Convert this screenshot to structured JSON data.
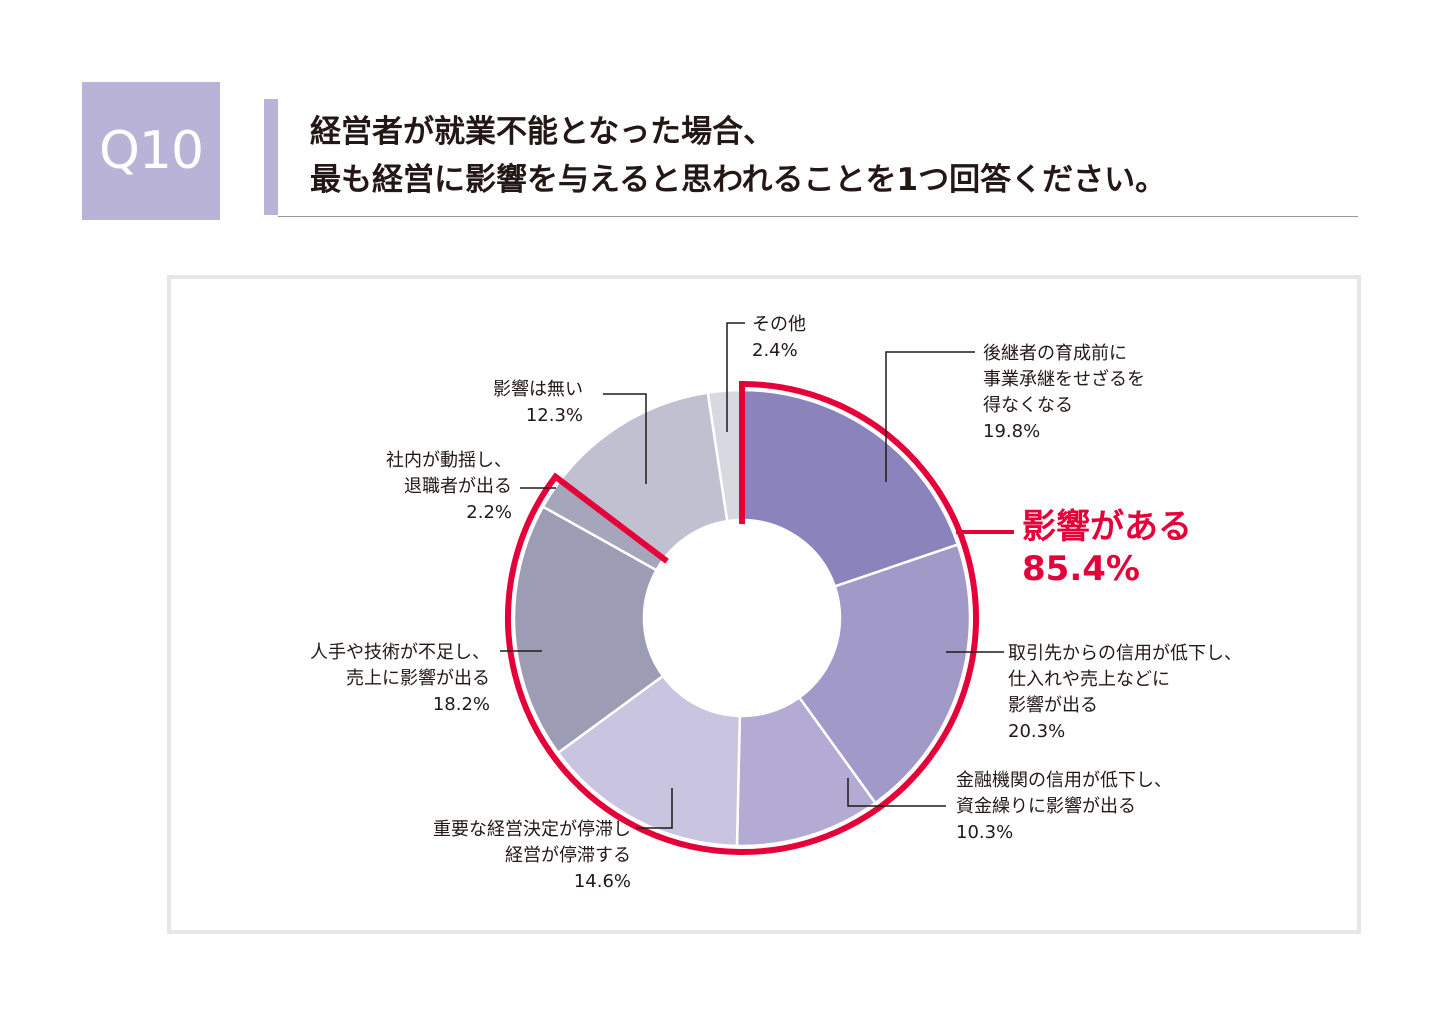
{
  "header": {
    "badge": "Q10",
    "title_line1": "経営者が就業不能となった場合、",
    "title_line2": "最も経営に影響を与えると思われることを1つ回答ください。"
  },
  "chart_data": {
    "type": "pie",
    "title": "",
    "categories": [
      "後継者の育成前に事業承継をせざるを得なくなる",
      "取引先からの信用が低下し、仕入れや売上などに影響が出る",
      "金融機関の信用が低下し、資金繰りに影響が出る",
      "重要な経営決定が停滞し経営が停滞する",
      "人手や技術が不足し、売上に影響が出る",
      "社内が動揺し、退職者が出る",
      "影響は無い",
      "その他"
    ],
    "values": [
      19.8,
      20.3,
      10.3,
      14.6,
      18.2,
      2.2,
      12.3,
      2.4
    ],
    "unit": "%",
    "colors": [
      "#8b84bc",
      "#a199c8",
      "#b3abd4",
      "#c9c4e0",
      "#9c9db4",
      "#a5a6bb",
      "#c0c0d1",
      "#d8d8e0"
    ],
    "slice_labels": [
      {
        "lines": [
          "後継者の育成前に",
          "事業承継をせざるを",
          "得なくなる"
        ],
        "value": "19.8%"
      },
      {
        "lines": [
          "取引先からの信用が低下し、",
          "仕入れや売上などに",
          "影響が出る"
        ],
        "value": "20.3%"
      },
      {
        "lines": [
          "金融機関の信用が低下し、",
          "資金繰りに影響が出る"
        ],
        "value": "10.3%"
      },
      {
        "lines": [
          "重要な経営決定が停滞し",
          "経営が停滞する"
        ],
        "value": "14.6%"
      },
      {
        "lines": [
          "人手や技術が不足し、",
          "売上に影響が出る"
        ],
        "value": "18.2%"
      },
      {
        "lines": [
          "社内が動揺し、",
          "退職者が出る"
        ],
        "value": "2.2%"
      },
      {
        "lines": [
          "影響は無い"
        ],
        "value": "12.3%"
      },
      {
        "lines": [
          "その他"
        ],
        "value": "2.4%"
      }
    ],
    "highlight": {
      "label": "影響がある",
      "value": "85.4%",
      "color": "#e60039",
      "slices": [
        0,
        1,
        2,
        3,
        4,
        5
      ]
    }
  }
}
